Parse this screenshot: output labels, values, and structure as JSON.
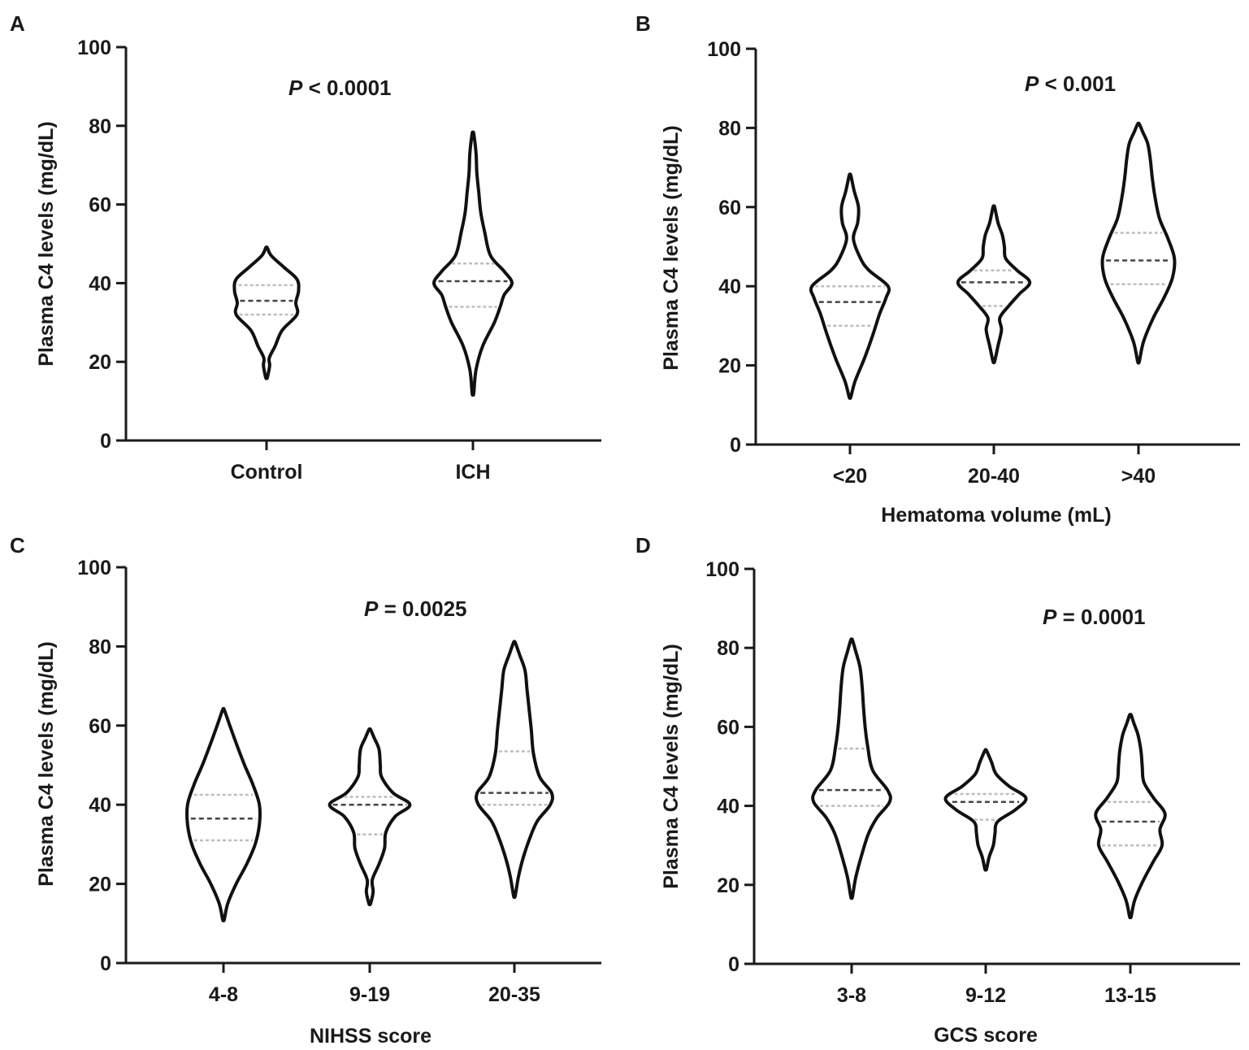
{
  "chart_data": [
    {
      "panel": "A",
      "type": "violin",
      "title": "",
      "ylabel": "Plasma C4 levels (mg/dL)",
      "xlabel": "",
      "ylim": [
        0,
        100
      ],
      "yticks": [
        0,
        20,
        40,
        60,
        80,
        100
      ],
      "categories": [
        "Control",
        "ICH"
      ],
      "annotation": {
        "p_label": "P",
        "p_text": " < 0.0001"
      },
      "violins": [
        {
          "name": "Control",
          "min": 16,
          "max": 49,
          "q1": 32,
          "median": 35.5,
          "q3": 39.5,
          "shape": [
            [
              16,
              0.02
            ],
            [
              19,
              0.08
            ],
            [
              21,
              0.07
            ],
            [
              24,
              0.22
            ],
            [
              28,
              0.4
            ],
            [
              32,
              0.78
            ],
            [
              35,
              0.75
            ],
            [
              38,
              0.82
            ],
            [
              41,
              0.78
            ],
            [
              44,
              0.45
            ],
            [
              47,
              0.12
            ],
            [
              49,
              0.02
            ]
          ]
        },
        {
          "name": "ICH",
          "min": 12,
          "max": 78,
          "q1": 34,
          "median": 40.5,
          "q3": 45,
          "shape": [
            [
              12,
              0.02
            ],
            [
              18,
              0.08
            ],
            [
              24,
              0.25
            ],
            [
              30,
              0.55
            ],
            [
              34,
              0.7
            ],
            [
              37,
              0.8
            ],
            [
              40,
              1.0
            ],
            [
              43,
              0.8
            ],
            [
              47,
              0.45
            ],
            [
              53,
              0.3
            ],
            [
              58,
              0.2
            ],
            [
              63,
              0.15
            ],
            [
              68,
              0.1
            ],
            [
              73,
              0.08
            ],
            [
              78,
              0.02
            ]
          ]
        }
      ]
    },
    {
      "panel": "B",
      "type": "violin",
      "title": "",
      "ylabel": "Plasma C4 levels (mg/dL)",
      "xlabel": "Hematoma volume (mL)",
      "ylim": [
        0,
        100
      ],
      "yticks": [
        0,
        20,
        40,
        60,
        80,
        100
      ],
      "categories": [
        "<20",
        "20-40",
        ">40"
      ],
      "annotation": {
        "p_label": "P",
        "p_text": " < 0.001"
      },
      "violins": [
        {
          "name": "<20",
          "min": 12,
          "max": 68,
          "q1": 30,
          "median": 36,
          "q3": 40,
          "shape": [
            [
              12,
              0.02
            ],
            [
              16,
              0.12
            ],
            [
              22,
              0.35
            ],
            [
              28,
              0.55
            ],
            [
              33,
              0.7
            ],
            [
              37,
              0.85
            ],
            [
              40,
              0.9
            ],
            [
              44,
              0.45
            ],
            [
              47,
              0.25
            ],
            [
              52,
              0.08
            ],
            [
              56,
              0.18
            ],
            [
              60,
              0.2
            ],
            [
              64,
              0.1
            ],
            [
              68,
              0.02
            ]
          ]
        },
        {
          "name": "20-40",
          "min": 21,
          "max": 60,
          "q1": 35,
          "median": 41,
          "q3": 44,
          "shape": [
            [
              21,
              0.02
            ],
            [
              25,
              0.1
            ],
            [
              29,
              0.18
            ],
            [
              32,
              0.14
            ],
            [
              35,
              0.35
            ],
            [
              38,
              0.6
            ],
            [
              41,
              0.85
            ],
            [
              44,
              0.55
            ],
            [
              47,
              0.28
            ],
            [
              50,
              0.25
            ],
            [
              53,
              0.2
            ],
            [
              56,
              0.1
            ],
            [
              60,
              0.02
            ]
          ]
        },
        {
          "name": ">40",
          "min": 21,
          "max": 81,
          "q1": 40.5,
          "median": 46.5,
          "q3": 53.5,
          "shape": [
            [
              21,
              0.02
            ],
            [
              26,
              0.12
            ],
            [
              32,
              0.35
            ],
            [
              37,
              0.6
            ],
            [
              42,
              0.8
            ],
            [
              47,
              0.85
            ],
            [
              52,
              0.7
            ],
            [
              57,
              0.5
            ],
            [
              62,
              0.4
            ],
            [
              67,
              0.33
            ],
            [
              72,
              0.28
            ],
            [
              76,
              0.22
            ],
            [
              79,
              0.1
            ],
            [
              81,
              0.02
            ]
          ]
        }
      ]
    },
    {
      "panel": "C",
      "type": "violin",
      "title": "",
      "ylabel": "Plasma C4 levels (mg/dL)",
      "xlabel": "NIHSS score",
      "ylim": [
        0,
        100
      ],
      "yticks": [
        0,
        20,
        40,
        60,
        80,
        100
      ],
      "categories": [
        "4-8",
        "9-19",
        "20-35"
      ],
      "annotation": {
        "p_label": "P",
        "p_text": " = 0.0025"
      },
      "violins": [
        {
          "name": "4-8",
          "min": 11,
          "max": 64,
          "q1": 31,
          "median": 36.5,
          "q3": 42.5,
          "shape": [
            [
              11,
              0.02
            ],
            [
              15,
              0.1
            ],
            [
              20,
              0.3
            ],
            [
              25,
              0.55
            ],
            [
              30,
              0.75
            ],
            [
              35,
              0.85
            ],
            [
              40,
              0.85
            ],
            [
              45,
              0.7
            ],
            [
              50,
              0.5
            ],
            [
              55,
              0.32
            ],
            [
              60,
              0.15
            ],
            [
              64,
              0.02
            ]
          ]
        },
        {
          "name": "9-19",
          "min": 15,
          "max": 59,
          "q1": 32.5,
          "median": 40,
          "q3": 42,
          "shape": [
            [
              15,
              0.02
            ],
            [
              18,
              0.08
            ],
            [
              21,
              0.06
            ],
            [
              25,
              0.22
            ],
            [
              29,
              0.35
            ],
            [
              33,
              0.38
            ],
            [
              37,
              0.6
            ],
            [
              40,
              0.95
            ],
            [
              43,
              0.55
            ],
            [
              47,
              0.28
            ],
            [
              50,
              0.25
            ],
            [
              54,
              0.22
            ],
            [
              57,
              0.1
            ],
            [
              59,
              0.02
            ]
          ]
        },
        {
          "name": "20-35",
          "min": 17,
          "max": 81,
          "q1": 40,
          "median": 43,
          "q3": 53.5,
          "shape": [
            [
              17,
              0.02
            ],
            [
              22,
              0.1
            ],
            [
              27,
              0.22
            ],
            [
              32,
              0.38
            ],
            [
              36,
              0.55
            ],
            [
              40,
              0.85
            ],
            [
              43,
              0.88
            ],
            [
              47,
              0.6
            ],
            [
              53,
              0.45
            ],
            [
              59,
              0.4
            ],
            [
              64,
              0.35
            ],
            [
              69,
              0.3
            ],
            [
              74,
              0.25
            ],
            [
              78,
              0.12
            ],
            [
              81,
              0.02
            ]
          ]
        }
      ]
    },
    {
      "panel": "D",
      "type": "violin",
      "title": "",
      "ylabel": "Plasma C4 levels (mg/dL)",
      "xlabel": "GCS score",
      "ylim": [
        0,
        100
      ],
      "yticks": [
        0,
        20,
        40,
        60,
        80,
        100
      ],
      "categories": [
        "3-8",
        "9-12",
        "13-15"
      ],
      "annotation": {
        "p_label": "P",
        "p_text": " = 0.0001"
      },
      "violins": [
        {
          "name": "3-8",
          "min": 17,
          "max": 82,
          "q1": 40,
          "median": 44,
          "q3": 54.5,
          "shape": [
            [
              17,
              0.02
            ],
            [
              22,
              0.1
            ],
            [
              28,
              0.25
            ],
            [
              33,
              0.4
            ],
            [
              37,
              0.6
            ],
            [
              41,
              0.9
            ],
            [
              44,
              0.85
            ],
            [
              49,
              0.5
            ],
            [
              55,
              0.38
            ],
            [
              60,
              0.32
            ],
            [
              65,
              0.28
            ],
            [
              70,
              0.25
            ],
            [
              75,
              0.2
            ],
            [
              79,
              0.1
            ],
            [
              82,
              0.02
            ]
          ]
        },
        {
          "name": "9-12",
          "min": 24,
          "max": 54,
          "q1": 36.5,
          "median": 41,
          "q3": 43,
          "shape": [
            [
              24,
              0.02
            ],
            [
              27,
              0.08
            ],
            [
              30,
              0.18
            ],
            [
              33,
              0.22
            ],
            [
              36,
              0.28
            ],
            [
              39,
              0.7
            ],
            [
              42,
              0.95
            ],
            [
              45,
              0.55
            ],
            [
              48,
              0.25
            ],
            [
              51,
              0.14
            ],
            [
              54,
              0.02
            ]
          ]
        },
        {
          "name": "13-15",
          "min": 12,
          "max": 63,
          "q1": 30,
          "median": 36,
          "q3": 41,
          "shape": [
            [
              12,
              0.02
            ],
            [
              16,
              0.1
            ],
            [
              21,
              0.3
            ],
            [
              26,
              0.55
            ],
            [
              30,
              0.75
            ],
            [
              34,
              0.7
            ],
            [
              38,
              0.82
            ],
            [
              42,
              0.55
            ],
            [
              46,
              0.32
            ],
            [
              50,
              0.28
            ],
            [
              54,
              0.25
            ],
            [
              58,
              0.18
            ],
            [
              61,
              0.08
            ],
            [
              63,
              0.02
            ]
          ]
        }
      ]
    }
  ]
}
